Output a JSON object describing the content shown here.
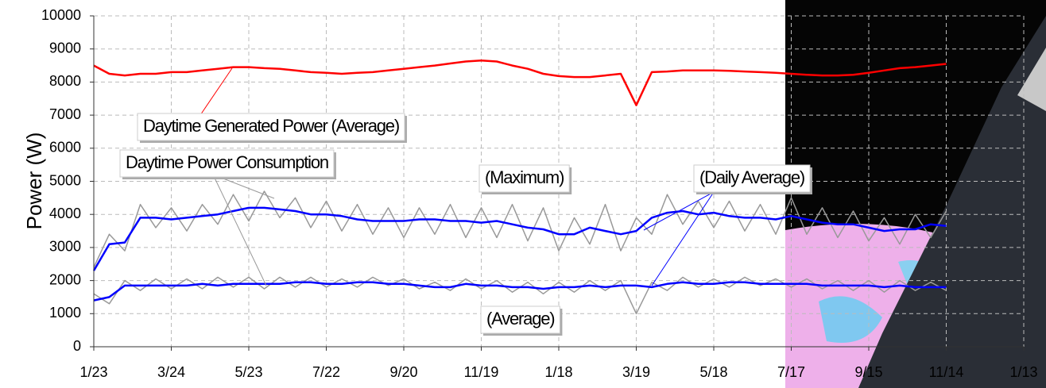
{
  "chart_data": {
    "type": "line",
    "ylabel": "Power (W)",
    "xlim": [
      0,
      720
    ],
    "xticks": [
      {
        "value": 0,
        "label": "1/23"
      },
      {
        "value": 60,
        "label": "3/24"
      },
      {
        "value": 120,
        "label": "5/23"
      },
      {
        "value": 180,
        "label": "7/22"
      },
      {
        "value": 240,
        "label": "9/20"
      },
      {
        "value": 300,
        "label": "11/19"
      },
      {
        "value": 360,
        "label": "1/18"
      },
      {
        "value": 420,
        "label": "3/19"
      },
      {
        "value": 480,
        "label": "5/18"
      },
      {
        "value": 540,
        "label": "7/17"
      },
      {
        "value": 600,
        "label": "9/15"
      },
      {
        "value": 660,
        "label": "11/14"
      },
      {
        "value": 720,
        "label": "1/13"
      }
    ],
    "ylim": [
      0,
      10000
    ],
    "yticks": [
      0,
      1000,
      2000,
      3000,
      4000,
      5000,
      6000,
      7000,
      8000,
      9000,
      10000
    ],
    "grid": true,
    "x": [
      0,
      12,
      24,
      36,
      48,
      60,
      72,
      84,
      96,
      108,
      120,
      132,
      144,
      156,
      168,
      180,
      192,
      204,
      216,
      228,
      240,
      252,
      264,
      276,
      288,
      300,
      312,
      324,
      336,
      348,
      360,
      372,
      384,
      396,
      408,
      420,
      432,
      444,
      456,
      468,
      480,
      492,
      504,
      516,
      528,
      540,
      552,
      564,
      576,
      588,
      600,
      612,
      624,
      636,
      648,
      660
    ],
    "series": [
      {
        "color": "#999999",
        "values": [
          2400,
          3400,
          2900,
          4300,
          3600,
          4200,
          3500,
          4300,
          3700,
          4600,
          3800,
          4700,
          3900,
          4500,
          3600,
          4400,
          3500,
          4300,
          3400,
          4200,
          3300,
          4200,
          3400,
          4300,
          3300,
          4200,
          3300,
          4300,
          3200,
          4200,
          2900,
          3900,
          3100,
          4300,
          2900,
          3900,
          3400,
          4600,
          3700,
          4400,
          3600,
          4400,
          3500,
          4300,
          3400,
          4500,
          3400,
          4200,
          3300,
          4100,
          3200,
          3900,
          3100,
          4000,
          3300,
          4100
        ]
      },
      {
        "color": "#999999",
        "values": [
          1600,
          1300,
          2000,
          1700,
          2050,
          1750,
          2050,
          1750,
          2100,
          1800,
          2100,
          1750,
          2100,
          1800,
          2100,
          1800,
          2050,
          1800,
          2100,
          1850,
          2050,
          1750,
          1950,
          1700,
          2050,
          1750,
          2000,
          1650,
          1950,
          1600,
          1950,
          1650,
          2000,
          1700,
          2000,
          1000,
          1950,
          1700,
          2100,
          1800,
          2050,
          1800,
          2100,
          1850,
          2050,
          1800,
          2050,
          1750,
          2000,
          1700,
          2000,
          1650,
          2000,
          1700,
          1950,
          1700
        ]
      },
      {
        "color": "#0000ff",
        "values": [
          2300,
          3100,
          3150,
          3900,
          3900,
          3850,
          3900,
          3950,
          4000,
          4100,
          4200,
          4200,
          4150,
          4100,
          4000,
          4000,
          3950,
          3850,
          3800,
          3800,
          3800,
          3850,
          3850,
          3800,
          3800,
          3750,
          3800,
          3700,
          3600,
          3550,
          3400,
          3400,
          3600,
          3500,
          3400,
          3500,
          3900,
          4050,
          4100,
          4000,
          4050,
          3950,
          3900,
          3900,
          3850,
          3950,
          3850,
          3750,
          3700,
          3700,
          3600,
          3500,
          3550,
          3550,
          3700,
          3650
        ]
      },
      {
        "color": "#0000ff",
        "values": [
          1400,
          1500,
          1850,
          1850,
          1850,
          1850,
          1850,
          1900,
          1850,
          1900,
          1900,
          1900,
          1900,
          1950,
          1950,
          1900,
          1900,
          1950,
          1950,
          1900,
          1900,
          1850,
          1800,
          1800,
          1900,
          1850,
          1850,
          1800,
          1800,
          1750,
          1800,
          1800,
          1850,
          1800,
          1850,
          1850,
          1800,
          1900,
          1950,
          1900,
          1900,
          1950,
          1950,
          1900,
          1900,
          1900,
          1900,
          1850,
          1850,
          1850,
          1850,
          1800,
          1850,
          1800,
          1800,
          1800
        ]
      },
      {
        "color": "#ff0000",
        "values": [
          8500,
          8250,
          8200,
          8250,
          8250,
          8300,
          8300,
          8350,
          8400,
          8450,
          8450,
          8420,
          8400,
          8350,
          8300,
          8280,
          8250,
          8280,
          8300,
          8350,
          8400,
          8450,
          8500,
          8560,
          8620,
          8650,
          8620,
          8500,
          8400,
          8250,
          8180,
          8150,
          8150,
          8200,
          8250,
          7300,
          8300,
          8320,
          8350,
          8350,
          8350,
          8340,
          8320,
          8300,
          8280,
          8250,
          8220,
          8200,
          8200,
          8220,
          8280,
          8350,
          8420,
          8450,
          8500,
          8550
        ]
      }
    ],
    "annotations": [
      {
        "text": "Daytime Generated Power (Average)",
        "color": "#ff0000"
      },
      {
        "text": "Daytime Power Consumption",
        "color": "#999999"
      },
      {
        "text": "(Maximum)",
        "color": "#999999"
      },
      {
        "text": "(Daily Average)",
        "color": "#0000ff"
      },
      {
        "text": "(Average)",
        "color": "#999999"
      }
    ]
  }
}
